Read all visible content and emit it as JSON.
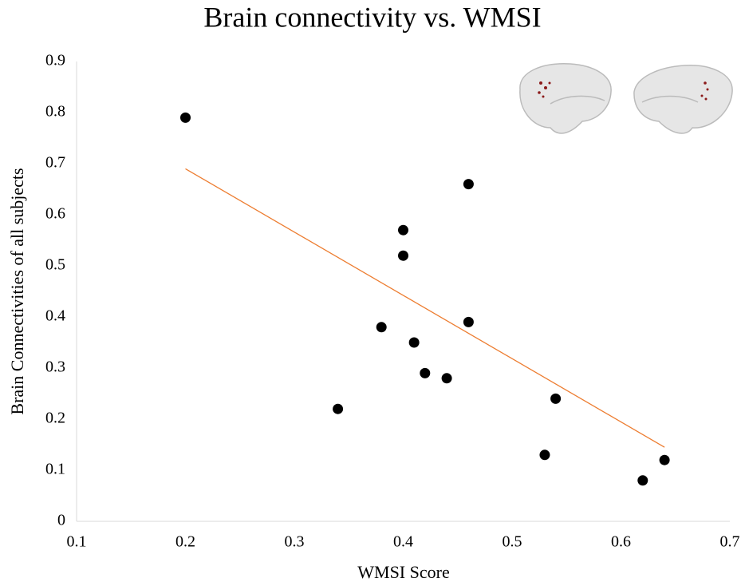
{
  "chart_data": {
    "type": "scatter",
    "title": "Brain connectivity vs. WMSI",
    "x_label": "WMSI Score",
    "y_label": "Brain Connectivities of all subjects",
    "series": [
      {
        "color": "#000000",
        "x": [
          0.2,
          0.34,
          0.38,
          0.4,
          0.4,
          0.41,
          0.42,
          0.44,
          0.46,
          0.46,
          0.53,
          0.54,
          0.62,
          0.64
        ],
        "values": [
          0.79,
          0.22,
          0.38,
          0.57,
          0.52,
          0.35,
          0.29,
          0.28,
          0.66,
          0.39,
          0.13,
          0.24,
          0.08,
          0.12
        ]
      }
    ],
    "trendline": {
      "color": "#ed7d31",
      "x": [
        0.2,
        0.64
      ],
      "values": [
        0.69,
        0.145
      ]
    },
    "xlim": [
      0.1,
      0.7
    ],
    "xticks": [
      0.1,
      0.2,
      0.3,
      0.4,
      0.5,
      0.6,
      0.7
    ],
    "ylim": [
      0,
      0.9
    ],
    "yticks": [
      0,
      0.1,
      0.2,
      0.3,
      0.4,
      0.5,
      0.6,
      0.7,
      0.8,
      0.9
    ],
    "grid": false
  }
}
